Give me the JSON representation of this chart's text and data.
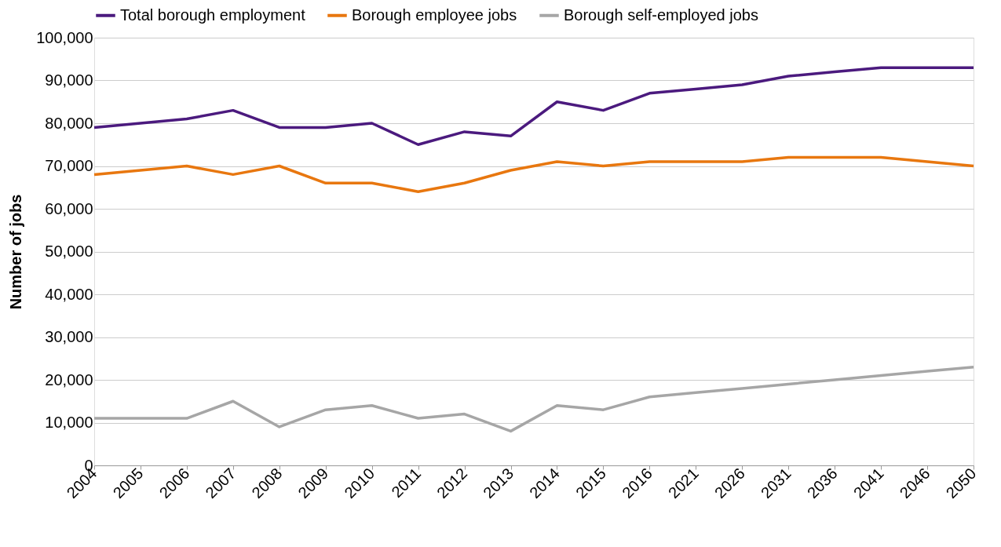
{
  "chart_data": {
    "type": "line",
    "ylabel": "Number of jobs",
    "categories": [
      "2004",
      "2005",
      "2006",
      "2007",
      "2008",
      "2009",
      "2010",
      "2011",
      "2012",
      "2013",
      "2014",
      "2015",
      "2016",
      "2021",
      "2026",
      "2031",
      "2036",
      "2041",
      "2046",
      "2050"
    ],
    "series": [
      {
        "name": "Total borough employment",
        "color": "#4b1a7e",
        "values": [
          79000,
          80000,
          81000,
          83000,
          79000,
          79000,
          80000,
          75000,
          78000,
          77000,
          85000,
          83000,
          87000,
          88000,
          89000,
          91000,
          92000,
          93000,
          93000,
          93000
        ]
      },
      {
        "name": "Borough employee jobs",
        "color": "#e8770f",
        "values": [
          68000,
          69000,
          70000,
          68000,
          70000,
          66000,
          66000,
          64000,
          66000,
          69000,
          71000,
          70000,
          71000,
          71000,
          71000,
          72000,
          72000,
          72000,
          71000,
          70000
        ]
      },
      {
        "name": "Borough self-employed jobs",
        "color": "#a6a6a6",
        "values": [
          11000,
          11000,
          11000,
          15000,
          9000,
          13000,
          14000,
          11000,
          12000,
          8000,
          14000,
          13000,
          16000,
          17000,
          18000,
          19000,
          20000,
          21000,
          22000,
          23000
        ]
      }
    ],
    "ylim": [
      0,
      100000
    ],
    "yticks": [
      0,
      {
        "value": 10000,
        "label": "10,000"
      },
      {
        "value": 20000,
        "label": "20,000"
      },
      {
        "value": 30000,
        "label": "30,000"
      },
      {
        "value": 40000,
        "label": "40,000"
      },
      {
        "value": 50000,
        "label": "50,000"
      },
      {
        "value": 60000,
        "label": "60,000"
      },
      {
        "value": 70000,
        "label": "70,000"
      },
      {
        "value": 80000,
        "label": "80,000"
      },
      {
        "value": 90000,
        "label": "90,000"
      },
      {
        "value": 100000,
        "label": "100,000"
      }
    ],
    "grid": "y",
    "legend": "top",
    "marker": "none",
    "line_style": "solid"
  }
}
